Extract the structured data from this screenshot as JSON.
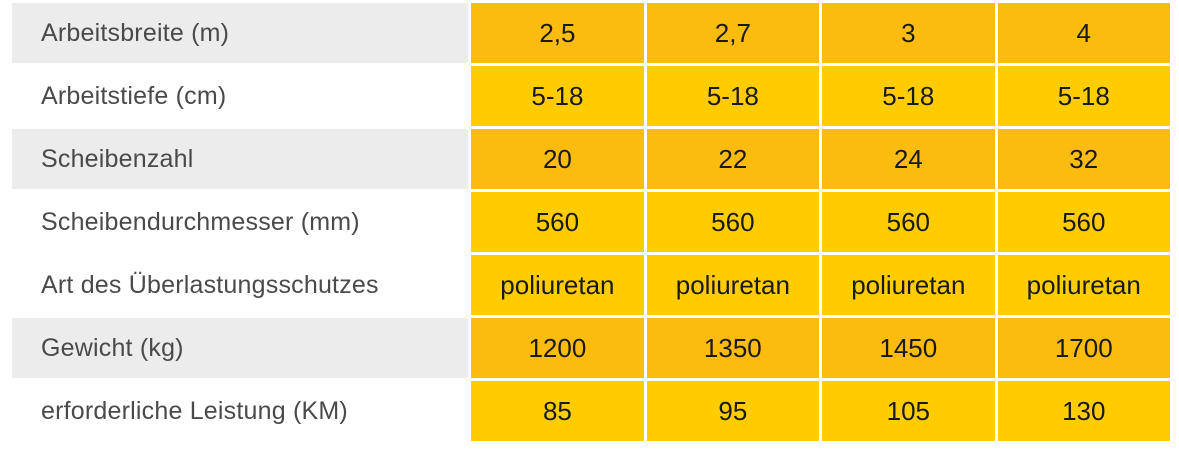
{
  "table": {
    "rows": [
      {
        "label": "Arbeitsbreite (m)",
        "values": [
          "2,5",
          "2,7",
          "3",
          "4"
        ]
      },
      {
        "label": "Arbeitstiefe (cm)",
        "values": [
          "5-18",
          "5-18",
          "5-18",
          "5-18"
        ]
      },
      {
        "label": "Scheibenzahl",
        "values": [
          "20",
          "22",
          "24",
          "32"
        ]
      },
      {
        "label": "Scheibendurchmesser (mm)",
        "values": [
          "560",
          "560",
          "560",
          "560"
        ]
      },
      {
        "label": "Art des Überlastungsschutzes",
        "values": [
          "poliuretan",
          "poliuretan",
          "poliuretan",
          "poliuretan"
        ]
      },
      {
        "label": "Gewicht (kg)",
        "values": [
          "1200",
          "1350",
          "1450",
          "1700"
        ]
      },
      {
        "label": "erforderliche Leistung (KM)",
        "values": [
          "85",
          "95",
          "105",
          "130"
        ]
      }
    ]
  },
  "colors": {
    "label_shade": "#ececec",
    "value_dark": "#fbbb0f",
    "value_light": "#ffcc00",
    "label_text": "#4a4a4a",
    "value_text": "#1a1a1a"
  }
}
